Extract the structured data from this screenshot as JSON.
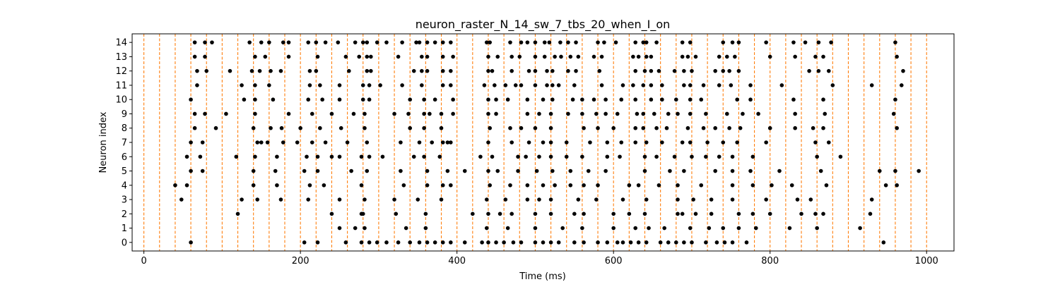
{
  "chart_data": {
    "type": "scatter",
    "title": "neuron_raster_N_14_sw_7_tbs_20_when_I_on",
    "xlabel": "Time (ms)",
    "ylabel": "Neuron index",
    "xlim": [
      -15,
      1035
    ],
    "ylim": [
      -0.6,
      14.6
    ],
    "xticks": [
      0,
      200,
      400,
      600,
      800,
      1000
    ],
    "yticks": [
      0,
      1,
      2,
      3,
      4,
      5,
      6,
      7,
      8,
      9,
      10,
      11,
      12,
      13,
      14
    ],
    "grid": false,
    "marker_color": "#000000",
    "vline_color": "#ff7f0e",
    "vlines": [
      0,
      20,
      40,
      60,
      80,
      100,
      120,
      140,
      160,
      180,
      200,
      220,
      240,
      260,
      280,
      300,
      320,
      340,
      360,
      380,
      400,
      420,
      440,
      460,
      480,
      500,
      520,
      540,
      560,
      580,
      600,
      620,
      640,
      660,
      680,
      700,
      720,
      740,
      760,
      780,
      800,
      820,
      840,
      860,
      880,
      900,
      920,
      940,
      960,
      980,
      1000
    ],
    "spikes": [
      {
        "neuron": 14,
        "times": [
          65,
          78,
          87,
          135,
          150,
          160,
          178,
          185,
          210,
          220,
          232,
          248,
          270,
          280,
          285,
          298,
          310,
          330,
          348,
          352,
          362,
          372,
          382,
          392,
          438,
          442,
          468,
          482,
          490,
          500,
          512,
          518,
          532,
          542,
          552,
          580,
          588,
          603,
          628,
          638,
          642,
          655,
          688,
          698,
          740,
          752,
          760,
          795,
          830,
          845,
          862,
          878,
          960
        ]
      },
      {
        "neuron": 13,
        "times": [
          65,
          78,
          142,
          155,
          185,
          222,
          258,
          275,
          285,
          290,
          325,
          355,
          362,
          382,
          395,
          440,
          452,
          470,
          480,
          500,
          512,
          525,
          533,
          545,
          555,
          575,
          585,
          625,
          632,
          642,
          648,
          688,
          695,
          705,
          735,
          745,
          755,
          800,
          832,
          858,
          868,
          962
        ]
      },
      {
        "neuron": 12,
        "times": [
          68,
          80,
          110,
          138,
          148,
          162,
          175,
          212,
          220,
          262,
          285,
          290,
          345,
          355,
          362,
          382,
          392,
          440,
          445,
          470,
          492,
          500,
          515,
          522,
          542,
          552,
          582,
          628,
          640,
          648,
          658,
          678,
          690,
          700,
          730,
          740,
          748,
          760,
          850,
          862,
          875,
          970
        ]
      },
      {
        "neuron": 11,
        "times": [
          68,
          125,
          142,
          160,
          212,
          225,
          250,
          280,
          288,
          302,
          330,
          355,
          382,
          392,
          435,
          448,
          462,
          475,
          482,
          500,
          515,
          522,
          530,
          550,
          585,
          612,
          625,
          638,
          648,
          662,
          690,
          698,
          715,
          735,
          750,
          775,
          815,
          880,
          930,
          968
        ]
      },
      {
        "neuron": 10,
        "times": [
          60,
          128,
          142,
          165,
          210,
          228,
          250,
          280,
          288,
          340,
          358,
          372,
          395,
          440,
          450,
          465,
          490,
          510,
          522,
          548,
          560,
          575,
          590,
          610,
          628,
          648,
          662,
          680,
          698,
          712,
          758,
          775,
          830,
          868,
          960
        ]
      },
      {
        "neuron": 9,
        "times": [
          65,
          78,
          105,
          142,
          185,
          215,
          240,
          268,
          282,
          320,
          338,
          358,
          365,
          380,
          395,
          440,
          450,
          490,
          505,
          520,
          542,
          560,
          578,
          590,
          605,
          630,
          638,
          652,
          670,
          682,
          698,
          718,
          745,
          765,
          785,
          832,
          870,
          958
        ]
      },
      {
        "neuron": 8,
        "times": [
          65,
          92,
          140,
          162,
          176,
          200,
          225,
          252,
          282,
          340,
          358,
          380,
          442,
          468,
          482,
          500,
          520,
          562,
          580,
          600,
          628,
          638,
          655,
          668,
          695,
          715,
          730,
          748,
          762,
          800,
          832,
          855,
          868,
          962
        ]
      },
      {
        "neuron": 7,
        "times": [
          60,
          75,
          145,
          150,
          158,
          178,
          196,
          215,
          232,
          260,
          285,
          328,
          352,
          368,
          382,
          388,
          392,
          440,
          470,
          492,
          510,
          520,
          540,
          570,
          592,
          610,
          628,
          642,
          662,
          688,
          698,
          720,
          740,
          758,
          795,
          858,
          875
        ]
      },
      {
        "neuron": 6,
        "times": [
          55,
          72,
          118,
          142,
          170,
          208,
          222,
          240,
          250,
          278,
          288,
          305,
          345,
          358,
          378,
          430,
          445,
          478,
          488,
          505,
          520,
          540,
          560,
          592,
          608,
          640,
          655,
          678,
          700,
          718,
          735,
          752,
          778,
          860,
          890
        ]
      },
      {
        "neuron": 5,
        "times": [
          60,
          75,
          140,
          168,
          205,
          222,
          265,
          285,
          328,
          362,
          388,
          410,
          440,
          452,
          478,
          502,
          522,
          545,
          568,
          590,
          640,
          672,
          690,
          730,
          752,
          775,
          812,
          865,
          940,
          960,
          990
        ]
      },
      {
        "neuron": 4,
        "times": [
          40,
          55,
          140,
          170,
          212,
          230,
          278,
          332,
          362,
          382,
          392,
          442,
          468,
          490,
          510,
          525,
          545,
          562,
          580,
          620,
          632,
          658,
          682,
          712,
          752,
          778,
          802,
          828,
          872,
          948,
          962
        ]
      },
      {
        "neuron": 3,
        "times": [
          48,
          125,
          145,
          175,
          210,
          250,
          282,
          320,
          350,
          380,
          438,
          462,
          490,
          505,
          520,
          555,
          578,
          612,
          642,
          682,
          702,
          725,
          752,
          795,
          835,
          852,
          930
        ]
      },
      {
        "neuron": 2,
        "times": [
          120,
          240,
          278,
          280,
          322,
          360,
          420,
          440,
          455,
          470,
          500,
          520,
          550,
          562,
          600,
          620,
          640,
          682,
          688,
          705,
          725,
          760,
          778,
          800,
          840,
          858,
          868,
          928
        ]
      },
      {
        "neuron": 1,
        "times": [
          250,
          270,
          282,
          335,
          360,
          438,
          465,
          500,
          535,
          560,
          600,
          628,
          645,
          665,
          698,
          722,
          740,
          760,
          782,
          825,
          860,
          915
        ]
      },
      {
        "neuron": 0,
        "times": [
          60,
          205,
          222,
          258,
          278,
          288,
          298,
          310,
          325,
          340,
          352,
          362,
          372,
          382,
          392,
          410,
          432,
          440,
          450,
          460,
          472,
          482,
          500,
          510,
          520,
          530,
          550,
          562,
          580,
          592,
          605,
          612,
          622,
          632,
          642,
          660,
          670,
          680,
          690,
          700,
          718,
          732,
          742,
          752,
          770,
          945
        ]
      }
    ]
  }
}
